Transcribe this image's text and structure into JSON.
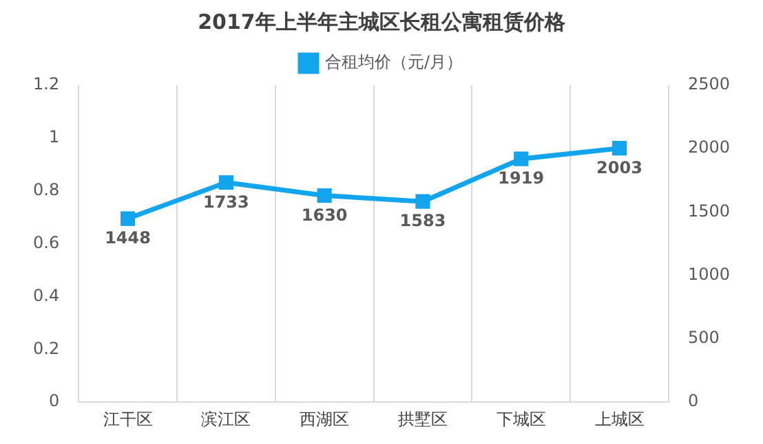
{
  "chart_data": {
    "type": "line",
    "title": "2017年上半年主城区长租公寓租赁价格",
    "categories": [
      "江干区",
      "滨江区",
      "西湖区",
      "拱墅区",
      "下城区",
      "上城区"
    ],
    "series": [
      {
        "name": "合租均价（元/月）",
        "color": "#12a4ec",
        "values": [
          1448,
          1733,
          1630,
          1583,
          1919,
          2003
        ],
        "axis": "y2"
      }
    ],
    "ylim": [
      0,
      1.2
    ],
    "yticks": [
      0,
      0.2,
      0.4,
      0.6,
      0.8,
      1,
      1.2
    ],
    "y2lim": [
      0,
      2500
    ],
    "y2ticks": [
      0,
      500,
      1000,
      1500,
      2000,
      2500
    ],
    "grid": "x",
    "legend": "top",
    "marker": "square",
    "line_style": "solid",
    "data_labels": true
  }
}
